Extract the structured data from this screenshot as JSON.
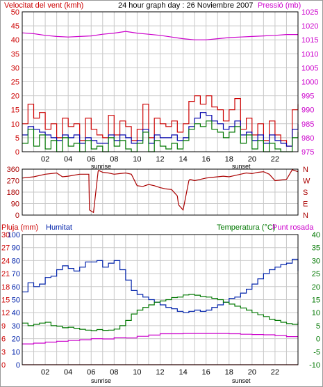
{
  "title": "24 hour graph day : 26 Noviembre 2007",
  "colors": {
    "wind": "#cc0000",
    "pressure": "#cc00cc",
    "gust": "#cc0000",
    "avg_wind": "#0000aa",
    "wind_alt": "#007700",
    "direction": "#aa0000",
    "rain": "#cc0000",
    "humidity": "#0022aa",
    "temperature": "#007700",
    "dewpoint": "#cc00cc",
    "grid": "#c8c8c8",
    "frame": "#000000"
  },
  "x_ticks": [
    "02",
    "04",
    "06",
    "08",
    "10",
    "12",
    "14",
    "16",
    "18",
    "20",
    "22"
  ],
  "sunrise_label": "sunrise",
  "sunset_label": "sunset",
  "chart_data": [
    {
      "type": "line",
      "title": "24 hour graph day : 26 Noviembre 2007",
      "left_label": "Velocitat del vent (kmh)",
      "right_label": "Pressió (mb)",
      "left_ticks": [
        "0",
        "5",
        "10",
        "15",
        "20",
        "25",
        "30",
        "35",
        "40",
        "45",
        "50"
      ],
      "right_ticks": [
        "975",
        "980",
        "985",
        "990",
        "995",
        "1000",
        "1005",
        "1010",
        "1015",
        "1020",
        "1025"
      ],
      "ylim_left": [
        0,
        50
      ],
      "ylim_right": [
        975,
        1025
      ],
      "x_range_hours": [
        0,
        24
      ],
      "series": [
        {
          "axis": "right",
          "x": [
            0,
            1,
            2,
            3,
            4,
            5,
            6,
            7,
            8,
            9,
            10,
            11,
            12,
            13,
            14,
            15,
            16,
            17,
            18,
            19,
            20,
            21,
            22,
            23,
            24
          ],
          "values": [
            1017.5,
            1017.2,
            1016.6,
            1016.2,
            1016.0,
            1016.2,
            1016.4,
            1017.0,
            1017.4,
            1018.0,
            1017.4,
            1017.0,
            1016.6,
            1016.0,
            1015.4,
            1015.0,
            1015.0,
            1015.4,
            1015.8,
            1016.0,
            1016.2,
            1016.4,
            1016.6,
            1016.9,
            1016.9
          ]
        },
        {
          "axis": "left",
          "x": [
            0,
            0.5,
            1,
            1.5,
            2,
            2.5,
            3,
            3.5,
            4,
            4.5,
            5,
            5.5,
            6,
            6.5,
            7,
            7.5,
            8,
            8.5,
            9,
            9.5,
            10,
            10.5,
            11,
            11.5,
            12,
            12.5,
            13,
            13.5,
            14,
            14.5,
            15,
            15.5,
            16,
            16.5,
            17,
            17.5,
            18,
            18.5,
            19,
            19.5,
            20,
            20.5,
            21,
            21.5,
            22,
            22.5,
            23,
            23.5,
            24
          ],
          "values": [
            10,
            17,
            12,
            14,
            8,
            10,
            5,
            12,
            9,
            10,
            4,
            12,
            8,
            6,
            5,
            13,
            6,
            11,
            9,
            4,
            8,
            17,
            5,
            12,
            10,
            9,
            11,
            7,
            10,
            18,
            20,
            17,
            20,
            16,
            15,
            11,
            15,
            19,
            8,
            12,
            6,
            10,
            4,
            11,
            6,
            4,
            2,
            15,
            17
          ]
        },
        {
          "axis": "left",
          "x": [
            0,
            0.5,
            1,
            1.5,
            2,
            2.5,
            3,
            3.5,
            4,
            4.5,
            5,
            5.5,
            6,
            6.5,
            7,
            7.5,
            8,
            8.5,
            9,
            9.5,
            10,
            10.5,
            11,
            11.5,
            12,
            12.5,
            13,
            13.5,
            14,
            14.5,
            15,
            15.5,
            16,
            16.5,
            17,
            17.5,
            18,
            18.5,
            19,
            19.5,
            20,
            20.5,
            21,
            21.5,
            22,
            22.5,
            23,
            23.5,
            24
          ],
          "values": [
            6,
            9,
            8,
            7,
            6,
            5,
            4,
            6,
            5,
            6,
            3,
            5,
            4,
            3,
            3,
            6,
            4,
            6,
            5,
            3,
            4,
            8,
            3,
            6,
            5,
            5,
            6,
            4,
            5,
            9,
            12,
            14,
            13,
            11,
            10,
            8,
            9,
            11,
            6,
            7,
            4,
            6,
            3,
            6,
            4,
            3,
            2,
            8,
            10
          ]
        },
        {
          "axis": "left",
          "x": [
            0,
            0.5,
            1,
            1.5,
            2,
            2.5,
            3,
            3.5,
            4,
            4.5,
            5,
            5.5,
            6,
            6.5,
            7,
            7.5,
            8,
            8.5,
            9,
            9.5,
            10,
            10.5,
            11,
            11.5,
            12,
            12.5,
            13,
            13.5,
            14,
            14.5,
            15,
            15.5,
            16,
            16.5,
            17,
            17.5,
            18,
            18.5,
            19,
            19.5,
            20,
            20.5,
            21,
            21.5,
            22,
            22.5,
            23,
            23.5,
            24
          ],
          "values": [
            3,
            8,
            2,
            6,
            1,
            4,
            0,
            5,
            2,
            3,
            0,
            4,
            1,
            2,
            0,
            5,
            2,
            4,
            1,
            0,
            3,
            7,
            0,
            4,
            2,
            1,
            3,
            1,
            4,
            8,
            10,
            9,
            11,
            8,
            7,
            5,
            7,
            9,
            3,
            6,
            1,
            4,
            0,
            3,
            1,
            0,
            0,
            5,
            7
          ]
        }
      ]
    },
    {
      "type": "line",
      "left_ticks": [
        "0",
        "90",
        "180",
        "270",
        "360"
      ],
      "right_ticks": [
        "N",
        "E",
        "S",
        "W",
        "N"
      ],
      "ylim": [
        0,
        360
      ],
      "x_range_hours": [
        0,
        24
      ],
      "series": [
        {
          "x": [
            0,
            1,
            2,
            3,
            3.5,
            4,
            5,
            5.8,
            5.85,
            6.2,
            6.6,
            6.65,
            7,
            7.5,
            8,
            8.5,
            9,
            9.5,
            10,
            10.5,
            11,
            11.5,
            12,
            12.5,
            13,
            13.5,
            13.6,
            14,
            14.5,
            14.6,
            15,
            15.5,
            16,
            16.5,
            17,
            17.5,
            18,
            18.5,
            19,
            19.5,
            20,
            20.5,
            21,
            21.5,
            22,
            22.5,
            23,
            23.5,
            24
          ],
          "values": [
            290,
            300,
            320,
            330,
            300,
            305,
            320,
            320,
            40,
            20,
            340,
            350,
            335,
            330,
            320,
            325,
            330,
            320,
            230,
            225,
            240,
            230,
            215,
            205,
            200,
            150,
            80,
            40,
            270,
            280,
            270,
            280,
            290,
            295,
            300,
            305,
            300,
            310,
            320,
            330,
            325,
            335,
            340,
            320,
            270,
            275,
            280,
            355,
            340
          ]
        }
      ]
    },
    {
      "type": "line",
      "left_labels": [
        "Pluja (mm)",
        "Humitat"
      ],
      "right_labels": [
        "Temperatura (°C)",
        "Punt rosada"
      ],
      "rain_ticks": [
        "0",
        "3",
        "6",
        "9",
        "12",
        "15",
        "18",
        "21",
        "24",
        "27",
        "30"
      ],
      "humidity_ticks": [
        "0",
        "10",
        "20",
        "30",
        "40",
        "50",
        "60",
        "70",
        "80",
        "90",
        "100"
      ],
      "temp_ticks": [
        "-10",
        "-5",
        "0",
        "5",
        "10",
        "15",
        "20",
        "25",
        "30",
        "35",
        "40"
      ],
      "ylim_humidity": [
        0,
        100
      ],
      "ylim_temperature": [
        -10,
        40
      ],
      "x_range_hours": [
        0,
        24
      ],
      "series": [
        {
          "axis": "humidity",
          "x": [
            0,
            0.5,
            1,
            1.5,
            2,
            2.5,
            3,
            3.5,
            4,
            4.5,
            5,
            5.5,
            6,
            6.5,
            7,
            7.5,
            8,
            8.5,
            9,
            9.5,
            10,
            10.5,
            11,
            11.5,
            12,
            12.5,
            13,
            13.5,
            14,
            14.5,
            15,
            15.5,
            16,
            16.5,
            17,
            17.5,
            18,
            18.5,
            19,
            19.5,
            20,
            20.5,
            21,
            21.5,
            22,
            22.5,
            23,
            23.5,
            24
          ],
          "values": [
            56,
            63,
            60,
            62,
            67,
            68,
            73,
            76,
            74,
            72,
            75,
            79,
            79,
            80,
            75,
            78,
            80,
            73,
            65,
            57,
            54,
            52,
            50,
            48,
            46,
            44,
            43,
            41,
            40,
            41,
            42,
            41,
            42,
            44,
            46,
            48,
            51,
            52,
            55,
            58,
            62,
            66,
            70,
            73,
            75,
            77,
            78,
            81,
            72
          ]
        },
        {
          "axis": "temperature",
          "x": [
            0,
            0.5,
            1,
            1.5,
            2,
            2.5,
            3,
            3.5,
            4,
            4.5,
            5,
            5.5,
            6,
            6.5,
            7,
            7.5,
            8,
            8.5,
            9,
            9.5,
            10,
            10.5,
            11,
            11.5,
            12,
            12.5,
            13,
            13.5,
            14,
            14.5,
            15,
            15.5,
            16,
            16.5,
            17,
            17.5,
            18,
            18.5,
            19,
            19.5,
            20,
            20.5,
            21,
            21.5,
            22,
            22.5,
            23,
            23.5,
            24
          ],
          "values": [
            6.0,
            5.0,
            5.5,
            6.0,
            6.3,
            5.0,
            4.8,
            4.2,
            4.4,
            4.0,
            3.6,
            3.3,
            3.1,
            3.5,
            3.2,
            3.3,
            3.7,
            5.0,
            7.0,
            9.5,
            11.0,
            12.0,
            13.0,
            14.0,
            14.5,
            15.0,
            15.8,
            16.0,
            16.8,
            17.0,
            16.7,
            16.2,
            16.0,
            15.5,
            15.0,
            14.0,
            13.3,
            12.5,
            11.8,
            11.0,
            10.0,
            9.2,
            8.5,
            7.5,
            7.0,
            6.3,
            5.8,
            5.5,
            6.5
          ]
        },
        {
          "axis": "temperature",
          "x": [
            0,
            1,
            2,
            3,
            4,
            5,
            6,
            7,
            8,
            9,
            10,
            11,
            12,
            13,
            14,
            15,
            16,
            17,
            18,
            19,
            20,
            21,
            22,
            23,
            24
          ],
          "values": [
            -2.0,
            -1.7,
            -1.3,
            -1.0,
            -0.7,
            -0.4,
            0.0,
            -0.1,
            0.4,
            0.3,
            0.9,
            1.4,
            1.9,
            1.9,
            2.0,
            2.0,
            2.0,
            2.0,
            1.9,
            1.7,
            1.6,
            1.5,
            1.2,
            0.8,
            0.8
          ]
        },
        {
          "axis": "rain",
          "x": [
            0,
            24
          ],
          "values": [
            0,
            0
          ]
        }
      ]
    }
  ]
}
